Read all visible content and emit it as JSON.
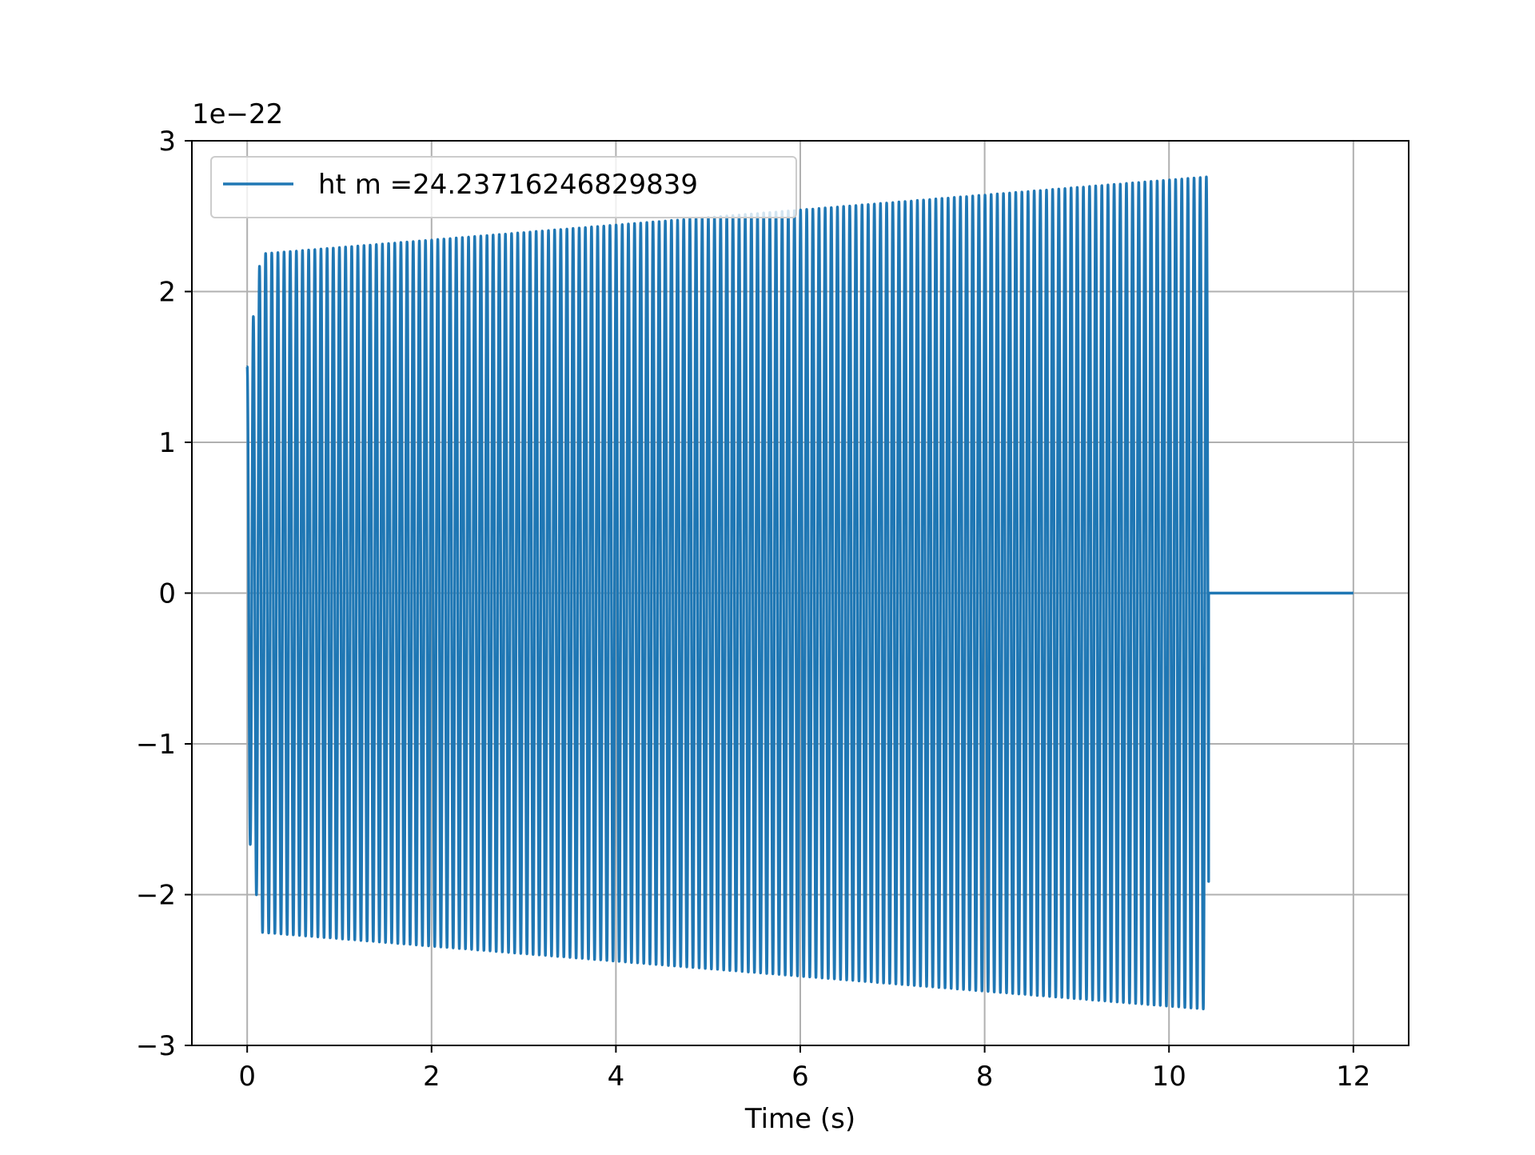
{
  "chart_data": {
    "type": "line",
    "title": "",
    "xlabel": "Time (s)",
    "ylabel": "",
    "y_offset_label": "1e−22",
    "y_scale_factor": 1e-22,
    "xlim": [
      -0.6,
      12.6
    ],
    "ylim": [
      -3e-22,
      3e-22
    ],
    "x_ticks": [
      0,
      2,
      4,
      6,
      8,
      10,
      12
    ],
    "x_tick_labels": [
      "0",
      "2",
      "4",
      "6",
      "8",
      "10",
      "12"
    ],
    "y_ticks": [
      -3,
      -2,
      -1,
      0,
      1,
      2,
      3
    ],
    "y_tick_labels": [
      "−3",
      "−2",
      "−1",
      "0",
      "1",
      "2",
      "3"
    ],
    "grid": true,
    "legend": {
      "position": "upper-left",
      "entries": [
        "ht m =24.23716246829839"
      ]
    },
    "colors": {
      "series": "#1f77b4",
      "grid": "#b0b0b0",
      "axes": "#000000"
    },
    "series": [
      {
        "name": "ht m =24.23716246829839",
        "kind": "oscillation",
        "x_start": 0.0,
        "x_end": 10.43,
        "period_s": 0.0667,
        "initial_value": 1.5e-22,
        "amplitude_envelope": {
          "x": [
            0.0,
            0.15,
            10.4
          ],
          "amplitude": [
            1.5e-22,
            2.25e-22,
            2.76e-22
          ]
        },
        "after_end": {
          "x": [
            10.43,
            12.0
          ],
          "y": [
            0.0,
            0.0
          ]
        }
      }
    ]
  }
}
